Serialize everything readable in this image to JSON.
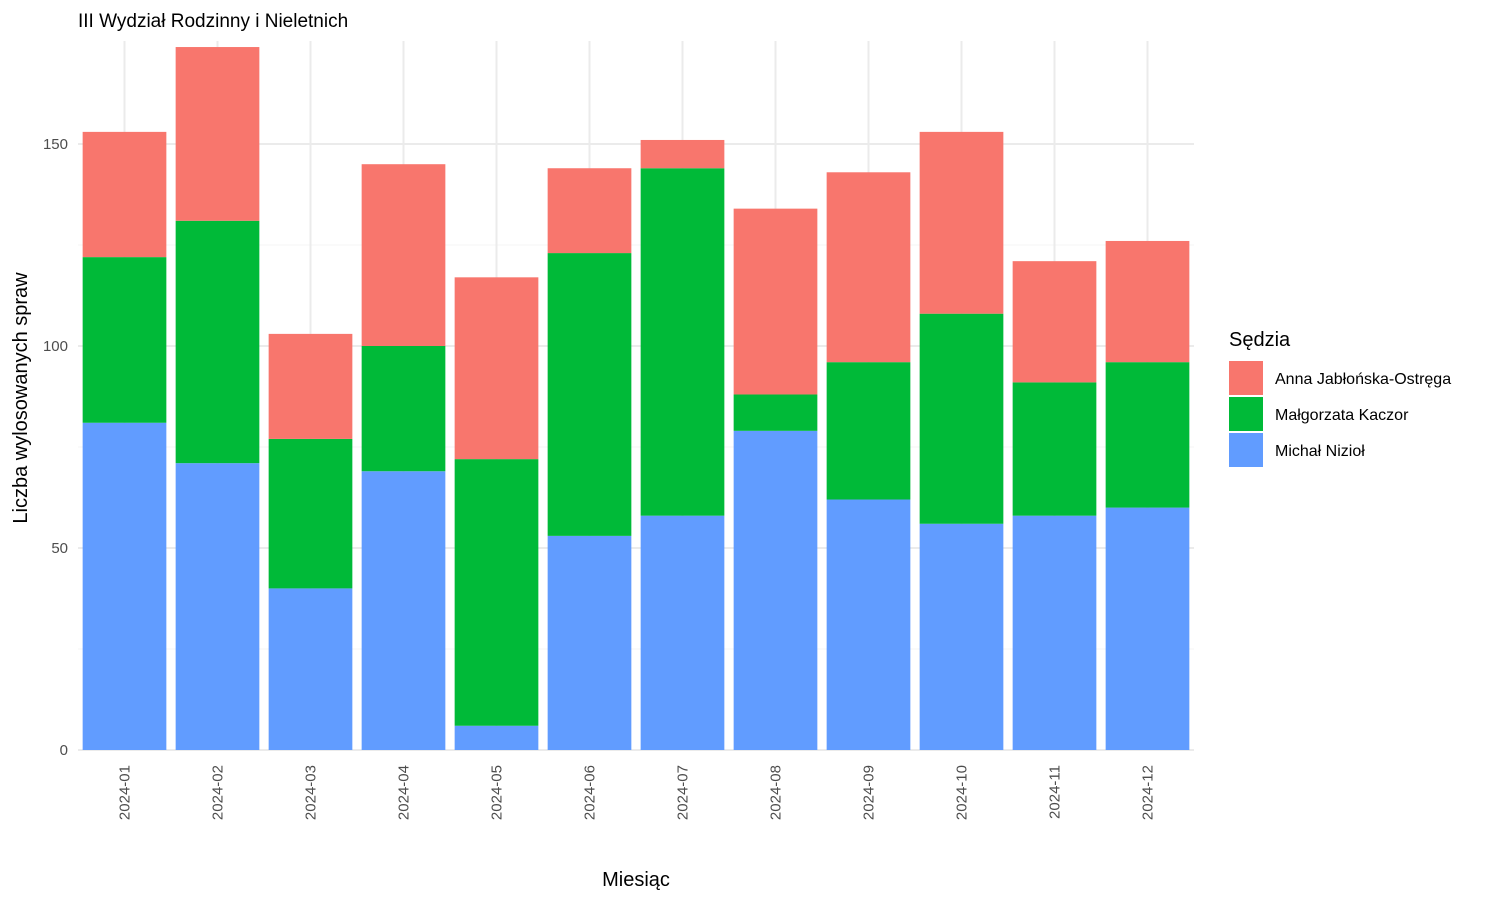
{
  "chart_data": {
    "type": "bar",
    "stacked": true,
    "title": "III Wydział Rodzinny i Nieletnich",
    "xlabel": "Miesiąc",
    "ylabel": "Liczba wylosowanych spraw",
    "ylim": [
      0,
      175
    ],
    "yticks": [
      0,
      50,
      100,
      150
    ],
    "grid": true,
    "legend_title": "Sędzia",
    "legend_position": "right",
    "categories": [
      "2024-01",
      "2024-02",
      "2024-03",
      "2024-04",
      "2024-05",
      "2024-06",
      "2024-07",
      "2024-08",
      "2024-09",
      "2024-10",
      "2024-11",
      "2024-12"
    ],
    "series": [
      {
        "name": "Anna Jabłońska-Ostręga",
        "color": "#F8766D",
        "values": [
          31,
          43,
          26,
          45,
          45,
          21,
          7,
          46,
          47,
          45,
          30,
          30
        ]
      },
      {
        "name": "Małgorzata Kaczor",
        "color": "#00BA38",
        "values": [
          41,
          60,
          37,
          31,
          66,
          70,
          86,
          9,
          34,
          52,
          33,
          36
        ]
      },
      {
        "name": "Michał Nizioł",
        "color": "#619CFF",
        "values": [
          81,
          71,
          40,
          69,
          6,
          53,
          58,
          79,
          62,
          56,
          58,
          60
        ]
      }
    ]
  }
}
